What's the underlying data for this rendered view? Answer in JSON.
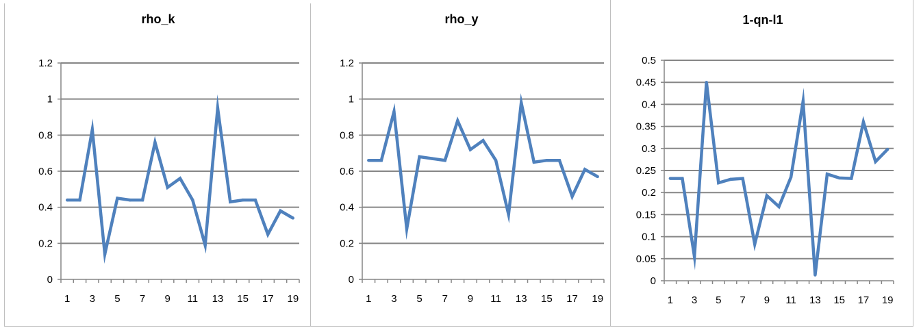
{
  "chart_data": [
    {
      "type": "line",
      "title": "rho_k",
      "x": [
        1,
        2,
        3,
        4,
        5,
        6,
        7,
        8,
        9,
        10,
        11,
        12,
        13,
        14,
        15,
        16,
        17,
        18,
        19
      ],
      "xtick_labels": [
        "1",
        "3",
        "5",
        "7",
        "9",
        "11",
        "13",
        "15",
        "17",
        "19"
      ],
      "ylim": [
        0,
        1.2
      ],
      "ytick_labels": [
        "0",
        "0.2",
        "0.4",
        "0.6",
        "0.8",
        "1",
        "1.2"
      ],
      "series": [
        {
          "values": [
            0.44,
            0.44,
            0.83,
            0.14,
            0.45,
            0.44,
            0.44,
            0.76,
            0.51,
            0.56,
            0.44,
            0.19,
            0.95,
            0.43,
            0.44,
            0.44,
            0.25,
            0.38,
            0.34
          ],
          "color": "#4f81bd"
        }
      ],
      "grid": true,
      "legend": "none"
    },
    {
      "type": "line",
      "title": "rho_y",
      "x": [
        1,
        2,
        3,
        4,
        5,
        6,
        7,
        8,
        9,
        10,
        11,
        12,
        13,
        14,
        15,
        16,
        17,
        18,
        19
      ],
      "xtick_labels": [
        "1",
        "3",
        "5",
        "7",
        "9",
        "11",
        "13",
        "15",
        "17",
        "19"
      ],
      "ylim": [
        0,
        1.2
      ],
      "ytick_labels": [
        "0",
        "0.2",
        "0.4",
        "0.6",
        "0.8",
        "1",
        "1.2"
      ],
      "series": [
        {
          "values": [
            0.66,
            0.66,
            0.93,
            0.28,
            0.68,
            0.67,
            0.66,
            0.88,
            0.72,
            0.77,
            0.66,
            0.36,
            0.98,
            0.65,
            0.66,
            0.66,
            0.46,
            0.61,
            0.57
          ],
          "color": "#4f81bd"
        }
      ],
      "grid": true,
      "legend": "none"
    },
    {
      "type": "line",
      "title": "1-qn-l1",
      "x": [
        1,
        2,
        3,
        4,
        5,
        6,
        7,
        8,
        9,
        10,
        11,
        12,
        13,
        14,
        15,
        16,
        17,
        18,
        19
      ],
      "xtick_labels": [
        "1",
        "3",
        "5",
        "7",
        "9",
        "11",
        "13",
        "15",
        "17",
        "19"
      ],
      "ylim": [
        0,
        0.5
      ],
      "ytick_labels": [
        "0",
        "0.05",
        "0.1",
        "0.15",
        "0.2",
        "0.25",
        "0.3",
        "0.35",
        "0.4",
        "0.45",
        "0.5"
      ],
      "series": [
        {
          "values": [
            0.232,
            0.232,
            0.055,
            0.45,
            0.222,
            0.23,
            0.232,
            0.083,
            0.193,
            0.168,
            0.235,
            0.407,
            0.013,
            0.242,
            0.233,
            0.232,
            0.36,
            0.27,
            0.298
          ],
          "color": "#4f81bd"
        }
      ],
      "grid": true,
      "legend": "none"
    }
  ]
}
